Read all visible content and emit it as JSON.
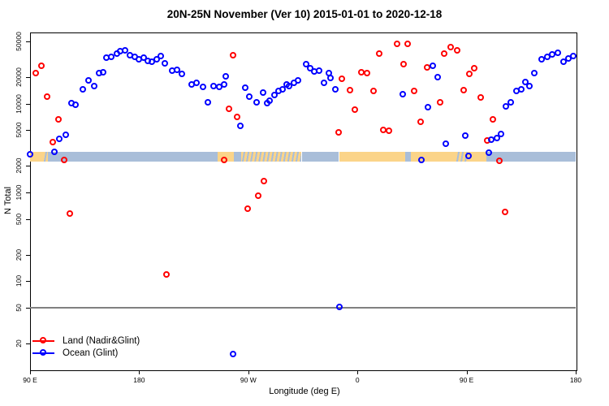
{
  "title": "20N-25N November (Ver 10)   2015-01-01 to 2020-12-18",
  "colors": {
    "land_series": "#ff0000",
    "ocean_series": "#0000ff",
    "map_land": "#fbd489",
    "map_ocean": "#a9bed9",
    "refline": "#808080",
    "axis": "#000000"
  },
  "legend": {
    "items": [
      {
        "label": "Land (Nadir&Glint)",
        "color_key": "land_series"
      },
      {
        "label": "Ocean (Glint)",
        "color_key": "ocean_series"
      }
    ]
  },
  "chart_data": {
    "type": "scatter",
    "title": "20N-25N November (Ver 10)   2015-01-01 to 2020-12-18",
    "xlabel": "Longitude (deg E)",
    "ylabel": "N Total",
    "y_scale": "log",
    "ylim": [
      20,
      50000
    ],
    "x_axis_deg_range": [
      90,
      540
    ],
    "x_axis_note": "degrees east continuing past 180; 270=90W, 360=0, 450=90E, 540=180",
    "x_ticks": [
      {
        "deg": 90,
        "label": "90 E"
      },
      {
        "deg": 180,
        "label": "180"
      },
      {
        "deg": 270,
        "label": "90 W"
      },
      {
        "deg": 360,
        "label": "0"
      },
      {
        "deg": 450,
        "label": "90 E"
      },
      {
        "deg": 540,
        "label": "180"
      }
    ],
    "y_ticks": [
      20,
      50,
      100,
      200,
      500,
      1000,
      2000,
      5000,
      10000,
      20000,
      50000
    ],
    "refline_n": 50,
    "map_strip": {
      "n_top": 2840,
      "n_bottom": 2240,
      "segments": [
        {
          "from_deg": 90.0,
          "to_deg": 100.5,
          "type": "land"
        },
        {
          "from_deg": 100.5,
          "to_deg": 105.0,
          "type": "mixed"
        },
        {
          "from_deg": 105.0,
          "to_deg": 244.5,
          "type": "ocean"
        },
        {
          "from_deg": 244.5,
          "to_deg": 258.0,
          "type": "land"
        },
        {
          "from_deg": 258.0,
          "to_deg": 264.0,
          "type": "ocean"
        },
        {
          "from_deg": 264.0,
          "to_deg": 314.0,
          "type": "mixed"
        },
        {
          "from_deg": 314.0,
          "to_deg": 344.8,
          "type": "ocean"
        },
        {
          "from_deg": 344.8,
          "to_deg": 399.6,
          "type": "land"
        },
        {
          "from_deg": 399.6,
          "to_deg": 404.3,
          "type": "ocean"
        },
        {
          "from_deg": 404.3,
          "to_deg": 441.1,
          "type": "land"
        },
        {
          "from_deg": 441.1,
          "to_deg": 451.1,
          "type": "mixed"
        },
        {
          "from_deg": 451.1,
          "to_deg": 466.5,
          "type": "land"
        },
        {
          "from_deg": 466.5,
          "to_deg": 540.0,
          "type": "ocean"
        }
      ]
    },
    "series": [
      {
        "name": "Land (Nadir&Glint)",
        "color": "#ff0000",
        "points": [
          [
            94.7,
            21700
          ],
          [
            99.4,
            26300
          ],
          [
            104,
            11900
          ],
          [
            108.7,
            3640
          ],
          [
            113.4,
            6640
          ],
          [
            118.1,
            2300
          ],
          [
            122.8,
            570
          ],
          [
            203,
            119
          ],
          [
            250.5,
            2320
          ],
          [
            254.5,
            8600
          ],
          [
            257.8,
            34800
          ],
          [
            261.2,
            6940
          ],
          [
            269.9,
            650
          ],
          [
            278.6,
            920
          ],
          [
            283.3,
            1320
          ],
          [
            344.8,
            4710
          ],
          [
            347.4,
            18700
          ],
          [
            354.1,
            14100
          ],
          [
            358.1,
            8410
          ],
          [
            363.5,
            22200
          ],
          [
            368.2,
            21700
          ],
          [
            373.5,
            13800
          ],
          [
            378.2,
            36400
          ],
          [
            381.5,
            5020
          ],
          [
            386.2,
            4900
          ],
          [
            392.9,
            47000
          ],
          [
            398.3,
            27500
          ],
          [
            401.6,
            47000
          ],
          [
            407,
            13700
          ],
          [
            412.3,
            6230
          ],
          [
            417.7,
            25200
          ],
          [
            428.4,
            10200
          ],
          [
            431.7,
            36400
          ],
          [
            437.1,
            43200
          ],
          [
            442.4,
            39600
          ],
          [
            447.8,
            14100
          ],
          [
            452.4,
            21200
          ],
          [
            456.5,
            24800
          ],
          [
            461.8,
            11700
          ],
          [
            467.2,
            3800
          ],
          [
            471.8,
            6640
          ],
          [
            477.2,
            2260
          ],
          [
            481.9,
            600
          ]
        ]
      },
      {
        "name": "Ocean (Glint)",
        "color": "#0000ff",
        "points": [
          [
            90,
            2680
          ],
          [
            110.1,
            2860
          ],
          [
            114.1,
            3960
          ],
          [
            119.4,
            4420
          ],
          [
            124.1,
            10000
          ],
          [
            128.1,
            9580
          ],
          [
            134.1,
            14400
          ],
          [
            138.8,
            17900
          ],
          [
            143.5,
            15700
          ],
          [
            147.5,
            21700
          ],
          [
            150.8,
            22200
          ],
          [
            153.5,
            32600
          ],
          [
            157.5,
            33300
          ],
          [
            162.2,
            36400
          ],
          [
            164.9,
            38800
          ],
          [
            168.9,
            39600
          ],
          [
            172.9,
            34800
          ],
          [
            176.9,
            33300
          ],
          [
            180.3,
            31400
          ],
          [
            184.3,
            32600
          ],
          [
            187.6,
            30000
          ],
          [
            191,
            29400
          ],
          [
            195,
            31400
          ],
          [
            198.3,
            33800
          ],
          [
            201.7,
            28000
          ],
          [
            207.7,
            23300
          ],
          [
            211.7,
            23800
          ],
          [
            215.7,
            21200
          ],
          [
            223.7,
            16100
          ],
          [
            227.8,
            16800
          ],
          [
            233.1,
            15400
          ],
          [
            237.1,
            10300
          ],
          [
            241.8,
            15700
          ],
          [
            246.5,
            15400
          ],
          [
            250.5,
            16100
          ],
          [
            251.8,
            19900
          ],
          [
            257.8,
            15
          ],
          [
            263.9,
            5600
          ],
          [
            267.9,
            15100
          ],
          [
            271.2,
            11900
          ],
          [
            277.2,
            10200
          ],
          [
            282.6,
            13200
          ],
          [
            285.9,
            10000
          ],
          [
            287.9,
            10700
          ],
          [
            292,
            12400
          ],
          [
            295.3,
            13700
          ],
          [
            298.7,
            14400
          ],
          [
            302,
            16100
          ],
          [
            304,
            15700
          ],
          [
            308,
            16800
          ],
          [
            311.3,
            17900
          ],
          [
            318.1,
            27500
          ],
          [
            321.4,
            24800
          ],
          [
            324.8,
            22700
          ],
          [
            328.8,
            23300
          ],
          [
            332.8,
            17100
          ],
          [
            336.8,
            21700
          ],
          [
            338.1,
            19100
          ],
          [
            342.1,
            14400
          ],
          [
            345.4,
            51
          ],
          [
            397.6,
            12700
          ],
          [
            412.9,
            2320
          ],
          [
            418.3,
            9000
          ],
          [
            422.4,
            26300
          ],
          [
            426.4,
            19500
          ],
          [
            433.1,
            3470
          ],
          [
            449.1,
            4290
          ],
          [
            451.8,
            2570
          ],
          [
            468.5,
            2790
          ],
          [
            470.5,
            3870
          ],
          [
            475.2,
            4030
          ],
          [
            478.5,
            4500
          ],
          [
            482.5,
            9200
          ],
          [
            486.6,
            10200
          ],
          [
            491.2,
            13800
          ],
          [
            495.3,
            14400
          ],
          [
            498.6,
            17500
          ],
          [
            502,
            15700
          ],
          [
            506,
            21700
          ],
          [
            512,
            31400
          ],
          [
            516.7,
            33300
          ],
          [
            520.7,
            35600
          ],
          [
            525.4,
            36900
          ],
          [
            530.1,
            29400
          ],
          [
            534.1,
            32100
          ],
          [
            538.1,
            34100
          ]
        ]
      }
    ]
  }
}
